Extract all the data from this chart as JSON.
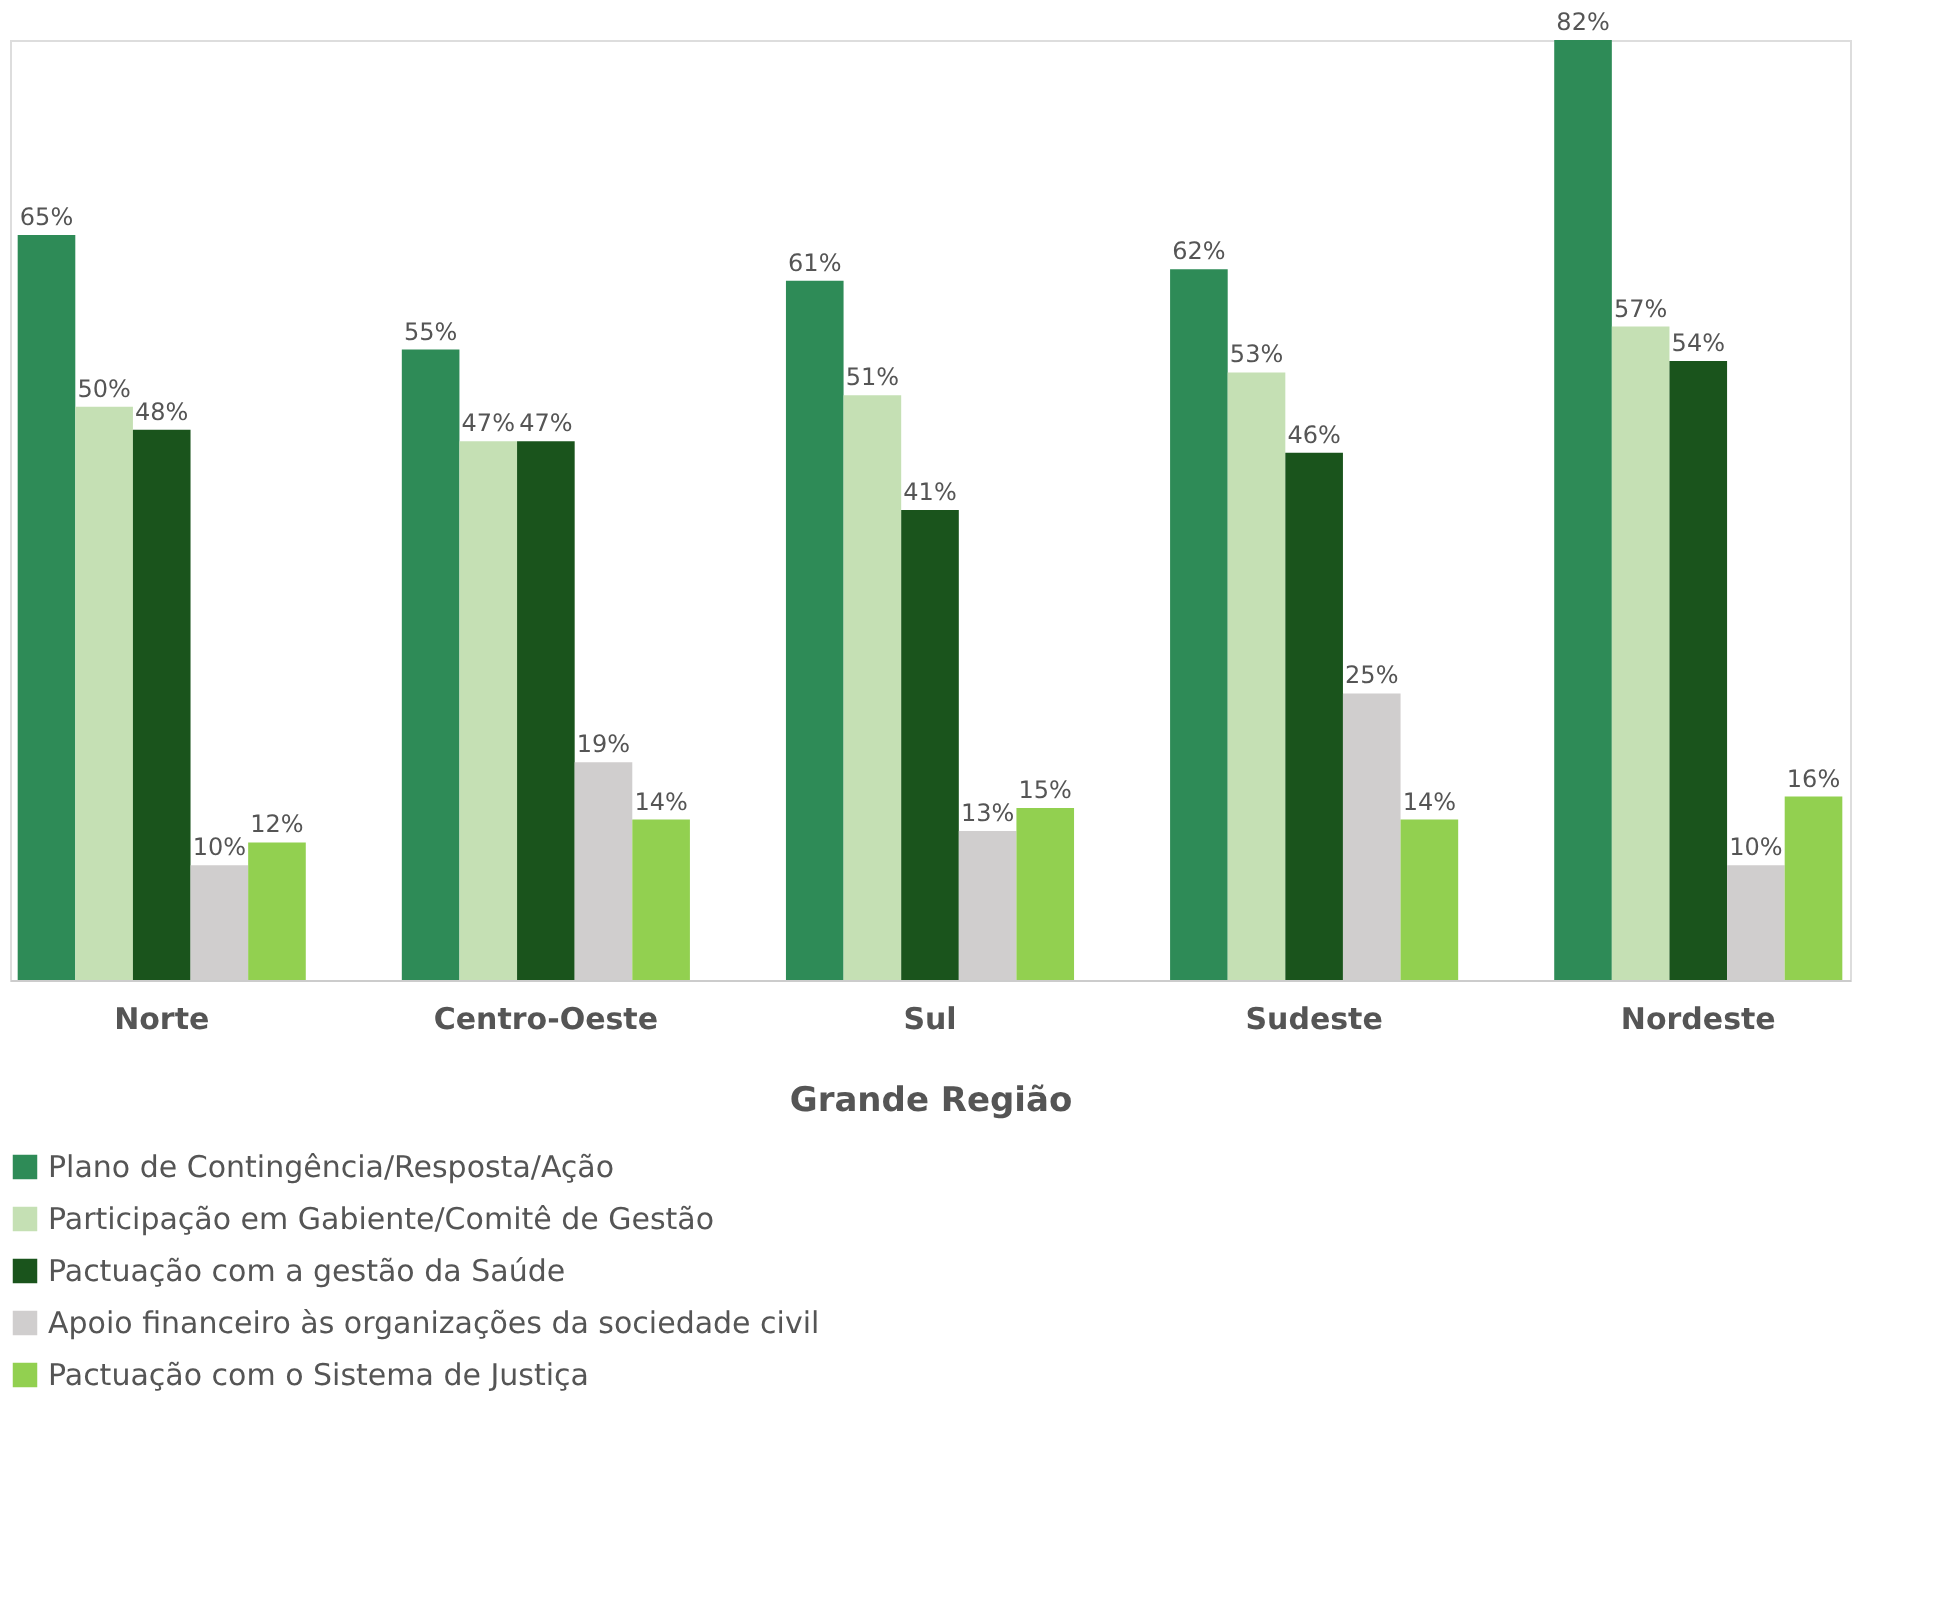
{
  "chart_data": {
    "type": "bar",
    "xlabel": "Grande Região",
    "categories": [
      "Norte",
      "Centro-Oeste",
      "Sul",
      "Sudeste",
      "Nordeste"
    ],
    "series": [
      {
        "name": "Plano de Contingência/Resposta/Ação",
        "color": "#2e8b57",
        "values": [
          65,
          55,
          61,
          62,
          82
        ],
        "value_labels": [
          "65%",
          "55%",
          "61%",
          "62%",
          "82%"
        ]
      },
      {
        "name": "Participação em Gabiente/Comitê de Gestão",
        "color": "#c5e0b4",
        "values": [
          50,
          47,
          51,
          53,
          57
        ],
        "value_labels": [
          "50%",
          "47%",
          "51%",
          "53%",
          "57%"
        ]
      },
      {
        "name": "Pactuação com a gestão da Saúde",
        "color": "#1a541c",
        "values": [
          48,
          47,
          41,
          46,
          54
        ],
        "value_labels": [
          "48%",
          "47%",
          "41%",
          "46%",
          "54%"
        ]
      },
      {
        "name": "Apoio financeiro às organizações da sociedade civil",
        "color": "#d0cece",
        "values": [
          10,
          19,
          13,
          25,
          10
        ],
        "value_labels": [
          "10%",
          "19%",
          "13%",
          "25%",
          "10%"
        ]
      },
      {
        "name": "Pactuação com o Sistema de Justiça",
        "color": "#92d050",
        "values": [
          12,
          14,
          15,
          14,
          16
        ],
        "value_labels": [
          "12%",
          "14%",
          "15%",
          "14%",
          "16%"
        ]
      }
    ],
    "legend": "bottom",
    "grid": false
  }
}
